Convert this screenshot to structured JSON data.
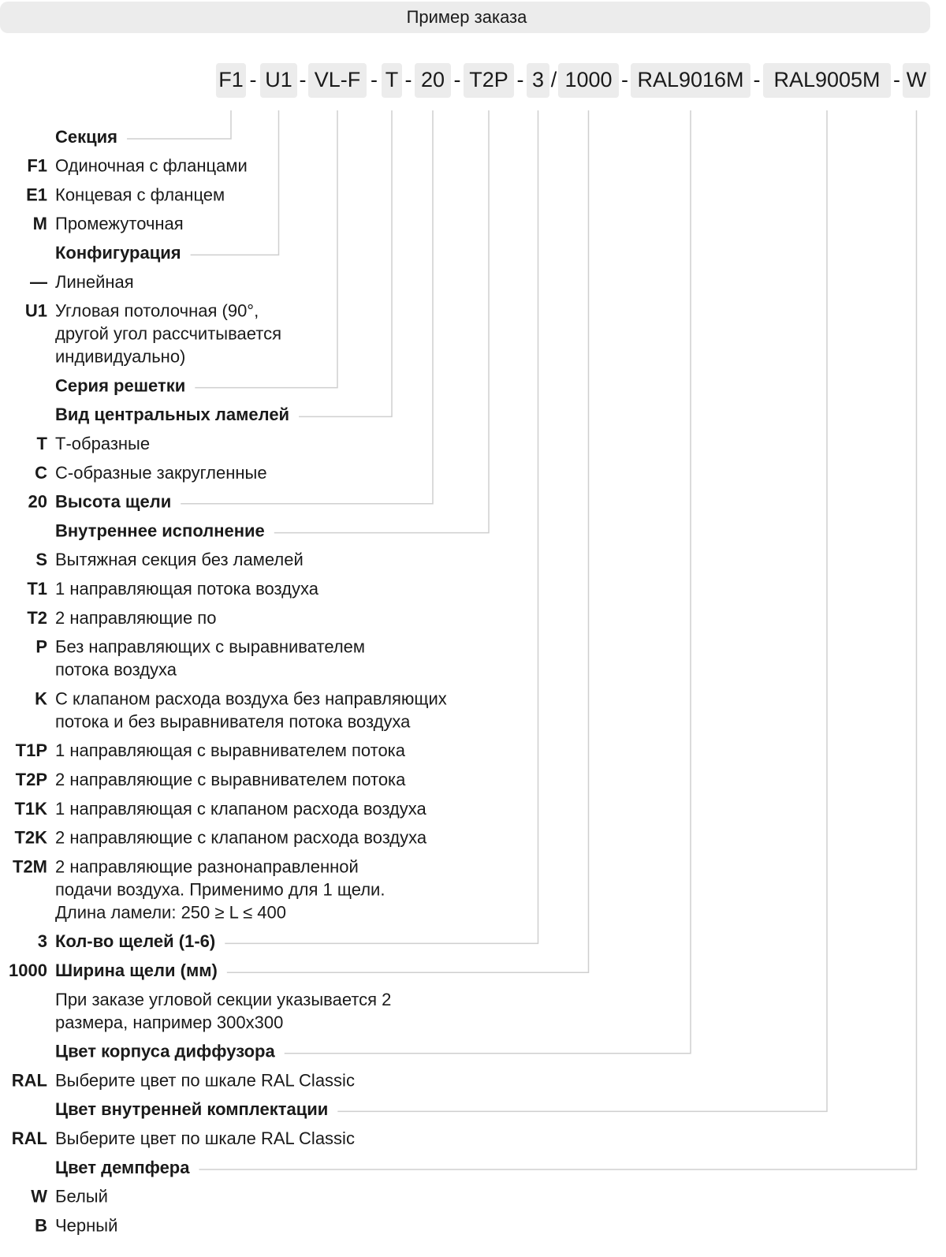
{
  "header": {
    "title": "Пример заказа"
  },
  "order": {
    "codes": [
      "F1",
      "U1",
      "VL-F",
      "T",
      "20",
      "T2P",
      "3",
      "1000",
      "RAL9016M",
      "RAL9005M",
      "W"
    ],
    "separators": [
      "-",
      "-",
      "-",
      "-",
      "-",
      "-",
      "/",
      "-",
      "-",
      "-"
    ]
  },
  "rows": [
    {
      "lines": [
        "Секция"
      ],
      "bold": true
    },
    {
      "code": "F1",
      "lines": [
        "Одиночная с фланцами"
      ]
    },
    {
      "code": "E1",
      "lines": [
        "Концевая с фланцем"
      ]
    },
    {
      "code": "M",
      "lines": [
        "Промежуточная"
      ]
    },
    {
      "lines": [
        "Конфигурация"
      ],
      "bold": true
    },
    {
      "code": "—",
      "lines": [
        "Линейная"
      ]
    },
    {
      "code": "U1",
      "lines": [
        "Угловая потолочная (90°,",
        "другой угол рассчитывается",
        "индивидуально)"
      ]
    },
    {
      "lines": [
        "Серия решетки"
      ],
      "bold": true
    },
    {
      "lines": [
        "Вид центральных ламелей"
      ],
      "bold": true
    },
    {
      "code": "T",
      "lines": [
        "Т-образные"
      ]
    },
    {
      "code": "C",
      "lines": [
        "С-образные закругленные"
      ]
    },
    {
      "code": "20",
      "lines": [
        "Высота щели"
      ],
      "bold": true
    },
    {
      "lines": [
        "Внутреннее исполнение"
      ],
      "bold": true
    },
    {
      "code": "S",
      "lines": [
        "Вытяжная секция без ламелей"
      ]
    },
    {
      "code": "T1",
      "lines": [
        "1 направляющая потока воздуха"
      ]
    },
    {
      "code": "T2",
      "lines": [
        "2 направляющие по"
      ]
    },
    {
      "code": "P",
      "lines": [
        "Без направляющих с выравнивателем",
        "потока воздуха"
      ]
    },
    {
      "code": "K",
      "lines": [
        "С клапаном расхода воздуха без направляющих",
        "потока и без выравнивателя потока воздуха"
      ]
    },
    {
      "code": "T1P",
      "lines": [
        "1 направляющая с выравнивателем потока"
      ]
    },
    {
      "code": "T2P",
      "lines": [
        "2 направляющие с выравнивателем потока"
      ]
    },
    {
      "code": "T1K",
      "lines": [
        "1 направляющая с клапаном расхода воздуха"
      ]
    },
    {
      "code": "T2K",
      "lines": [
        "2 направляющие с клапаном расхода воздуха"
      ]
    },
    {
      "code": "T2M",
      "lines": [
        "2 направляющие разнонаправленной",
        "подачи воздуха. Применимо для 1 щели.",
        "Длина ламели: 250 ≥ L ≤ 400"
      ]
    },
    {
      "code": "3",
      "lines": [
        "Кол-во щелей (1-6)"
      ],
      "bold": true
    },
    {
      "code": "1000",
      "lines": [
        "Ширина щели (мм)"
      ],
      "bold": true
    },
    {
      "lines": [
        "При заказе угловой секции указывается 2",
        "размера, например 300x300"
      ]
    },
    {
      "lines": [
        "Цвет корпуса диффузора"
      ],
      "bold": true
    },
    {
      "code": "RAL",
      "lines": [
        "Выберите цвет по шкале RAL Classic"
      ]
    },
    {
      "lines": [
        "Цвет внутренней комплектации"
      ],
      "bold": true
    },
    {
      "code": "RAL",
      "lines": [
        "Выберите цвет по шкале RAL Classic"
      ]
    },
    {
      "lines": [
        "Цвет демпфера"
      ],
      "bold": true
    },
    {
      "code": "W",
      "lines": [
        "Белый"
      ]
    },
    {
      "code": "B",
      "lines": [
        "Черный"
      ]
    }
  ]
}
